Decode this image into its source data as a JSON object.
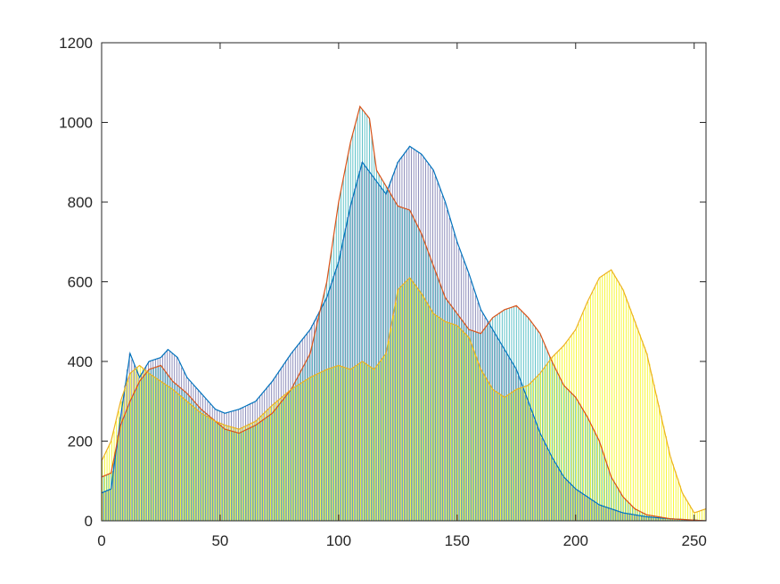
{
  "chart_data": {
    "type": "bar",
    "title": "",
    "xlabel": "",
    "ylabel": "",
    "xlim": [
      0,
      255
    ],
    "ylim": [
      0,
      1200
    ],
    "xticks": [
      0,
      50,
      100,
      150,
      200,
      250
    ],
    "yticks": [
      0,
      200,
      400,
      600,
      800,
      1000,
      1200
    ],
    "xtick_labels": [
      "0",
      "50",
      "100",
      "150",
      "200",
      "250"
    ],
    "ytick_labels": [
      "0",
      "200",
      "400",
      "600",
      "800",
      "1000",
      "1200"
    ],
    "grid": false,
    "legend": "none",
    "box": true,
    "stem_style": "histogram bins drawn as thin vertical lines with an envelope line per channel",
    "series": [
      {
        "color": "#0072BD",
        "fill_color": "#6f6fa8",
        "points": [
          [
            0,
            70
          ],
          [
            4,
            80
          ],
          [
            8,
            260
          ],
          [
            12,
            420
          ],
          [
            16,
            360
          ],
          [
            20,
            400
          ],
          [
            25,
            410
          ],
          [
            28,
            430
          ],
          [
            32,
            410
          ],
          [
            36,
            360
          ],
          [
            42,
            320
          ],
          [
            48,
            280
          ],
          [
            52,
            270
          ],
          [
            58,
            280
          ],
          [
            65,
            300
          ],
          [
            72,
            350
          ],
          [
            80,
            420
          ],
          [
            88,
            480
          ],
          [
            95,
            560
          ],
          [
            100,
            650
          ],
          [
            105,
            790
          ],
          [
            110,
            900
          ],
          [
            115,
            860
          ],
          [
            120,
            820
          ],
          [
            125,
            900
          ],
          [
            130,
            940
          ],
          [
            135,
            920
          ],
          [
            140,
            880
          ],
          [
            145,
            800
          ],
          [
            150,
            700
          ],
          [
            155,
            620
          ],
          [
            160,
            530
          ],
          [
            165,
            480
          ],
          [
            170,
            430
          ],
          [
            175,
            380
          ],
          [
            180,
            300
          ],
          [
            185,
            220
          ],
          [
            190,
            160
          ],
          [
            195,
            110
          ],
          [
            200,
            80
          ],
          [
            205,
            60
          ],
          [
            210,
            40
          ],
          [
            215,
            30
          ],
          [
            220,
            20
          ],
          [
            230,
            10
          ],
          [
            240,
            5
          ],
          [
            255,
            0
          ]
        ]
      },
      {
        "color": "#D95319",
        "fill_color": "#30b0b8",
        "points": [
          [
            0,
            110
          ],
          [
            4,
            120
          ],
          [
            8,
            240
          ],
          [
            12,
            300
          ],
          [
            16,
            350
          ],
          [
            20,
            380
          ],
          [
            25,
            390
          ],
          [
            30,
            350
          ],
          [
            36,
            320
          ],
          [
            42,
            280
          ],
          [
            48,
            250
          ],
          [
            52,
            230
          ],
          [
            58,
            220
          ],
          [
            65,
            240
          ],
          [
            72,
            270
          ],
          [
            80,
            330
          ],
          [
            88,
            420
          ],
          [
            95,
            600
          ],
          [
            100,
            800
          ],
          [
            105,
            950
          ],
          [
            109,
            1040
          ],
          [
            113,
            1010
          ],
          [
            116,
            880
          ],
          [
            120,
            840
          ],
          [
            125,
            790
          ],
          [
            130,
            780
          ],
          [
            135,
            720
          ],
          [
            140,
            640
          ],
          [
            145,
            560
          ],
          [
            150,
            520
          ],
          [
            155,
            480
          ],
          [
            160,
            470
          ],
          [
            165,
            510
          ],
          [
            170,
            530
          ],
          [
            175,
            540
          ],
          [
            180,
            510
          ],
          [
            185,
            470
          ],
          [
            190,
            400
          ],
          [
            195,
            340
          ],
          [
            200,
            310
          ],
          [
            205,
            260
          ],
          [
            210,
            200
          ],
          [
            215,
            110
          ],
          [
            220,
            60
          ],
          [
            225,
            30
          ],
          [
            230,
            15
          ],
          [
            240,
            5
          ],
          [
            255,
            0
          ]
        ]
      },
      {
        "color": "#EDB120",
        "fill_color": "#f5f500",
        "points": [
          [
            0,
            150
          ],
          [
            4,
            200
          ],
          [
            8,
            300
          ],
          [
            12,
            370
          ],
          [
            16,
            390
          ],
          [
            20,
            370
          ],
          [
            25,
            350
          ],
          [
            30,
            330
          ],
          [
            36,
            300
          ],
          [
            42,
            270
          ],
          [
            48,
            250
          ],
          [
            52,
            240
          ],
          [
            58,
            230
          ],
          [
            65,
            250
          ],
          [
            72,
            290
          ],
          [
            80,
            330
          ],
          [
            88,
            360
          ],
          [
            95,
            380
          ],
          [
            100,
            390
          ],
          [
            105,
            380
          ],
          [
            110,
            400
          ],
          [
            115,
            380
          ],
          [
            120,
            420
          ],
          [
            125,
            580
          ],
          [
            130,
            610
          ],
          [
            135,
            570
          ],
          [
            140,
            520
          ],
          [
            145,
            500
          ],
          [
            150,
            490
          ],
          [
            155,
            460
          ],
          [
            160,
            380
          ],
          [
            165,
            330
          ],
          [
            170,
            310
          ],
          [
            175,
            330
          ],
          [
            180,
            340
          ],
          [
            185,
            370
          ],
          [
            190,
            410
          ],
          [
            195,
            440
          ],
          [
            200,
            480
          ],
          [
            205,
            550
          ],
          [
            210,
            610
          ],
          [
            215,
            630
          ],
          [
            220,
            580
          ],
          [
            225,
            500
          ],
          [
            230,
            420
          ],
          [
            235,
            290
          ],
          [
            240,
            160
          ],
          [
            245,
            70
          ],
          [
            250,
            20
          ],
          [
            255,
            30
          ]
        ]
      }
    ]
  }
}
